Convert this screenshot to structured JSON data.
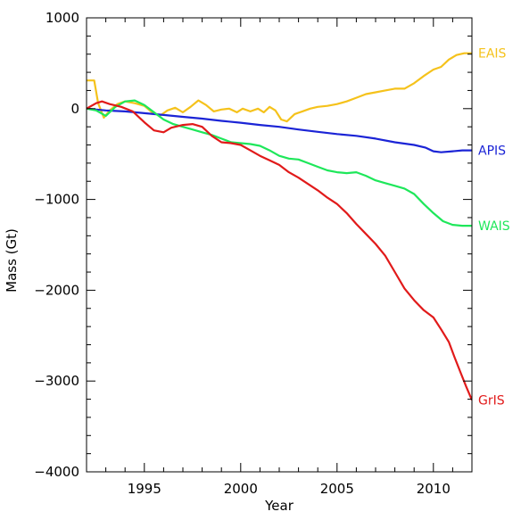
{
  "chart_data": {
    "type": "line",
    "title": "",
    "xlabel": "Year",
    "ylabel": "Mass (Gt)",
    "xlim": [
      1992,
      2012
    ],
    "ylim": [
      -4000,
      1000
    ],
    "xticks": [
      1995,
      2000,
      2005,
      2010
    ],
    "xtick_labels": [
      "1995",
      "2000",
      "2005",
      "2010"
    ],
    "yticks": [
      1000,
      0,
      -1000,
      -2000,
      -3000,
      -4000
    ],
    "ytick_labels": [
      "1000",
      "0",
      "−1000",
      "−2000",
      "−3000",
      "−4000"
    ],
    "grid": false,
    "legend": "direct labels at right end of lines",
    "series": [
      {
        "name": "EAIS",
        "color": "#f5c21b",
        "x": [
          1992.0,
          1992.4,
          1992.6,
          1992.9,
          1993.2,
          1993.6,
          1994.0,
          1994.5,
          1995.0,
          1995.4,
          1995.8,
          1996.2,
          1996.6,
          1997.0,
          1997.4,
          1997.8,
          1998.2,
          1998.6,
          1999.0,
          1999.4,
          1999.8,
          2000.1,
          2000.5,
          2000.9,
          2001.2,
          2001.5,
          2001.8,
          2002.1,
          2002.4,
          2002.8,
          2003.2,
          2003.6,
          2004.0,
          2004.5,
          2005.0,
          2005.5,
          2006.0,
          2006.5,
          2007.0,
          2007.5,
          2008.0,
          2008.5,
          2009.0,
          2009.5,
          2010.0,
          2010.4,
          2010.8,
          2011.2,
          2011.6,
          2012.0
        ],
        "values": [
          310,
          310,
          60,
          -100,
          -20,
          50,
          80,
          60,
          30,
          -40,
          -80,
          -20,
          10,
          -40,
          20,
          90,
          40,
          -30,
          -10,
          0,
          -40,
          0,
          -30,
          0,
          -40,
          20,
          -20,
          -120,
          -140,
          -60,
          -30,
          0,
          20,
          30,
          50,
          80,
          120,
          160,
          180,
          200,
          220,
          220,
          280,
          360,
          430,
          460,
          540,
          590,
          610,
          610
        ]
      },
      {
        "name": "APIS",
        "color": "#1b24d6",
        "x": [
          1992.0,
          1993.0,
          1994.0,
          1995.0,
          1996.0,
          1997.0,
          1998.0,
          1999.0,
          2000.0,
          2001.0,
          2002.0,
          2003.0,
          2004.0,
          2005.0,
          2006.0,
          2007.0,
          2008.0,
          2009.0,
          2009.6,
          2010.0,
          2010.4,
          2011.0,
          2011.5,
          2012.0
        ],
        "values": [
          0,
          -20,
          -30,
          -50,
          -70,
          -90,
          -110,
          -135,
          -155,
          -180,
          -200,
          -230,
          -255,
          -280,
          -300,
          -330,
          -370,
          -400,
          -430,
          -470,
          -480,
          -470,
          -460,
          -460
        ]
      },
      {
        "name": "WAIS",
        "color": "#1ee75a",
        "x": [
          1992.0,
          1992.5,
          1993.0,
          1993.5,
          1994.0,
          1994.5,
          1995.0,
          1995.5,
          1996.0,
          1996.5,
          1997.0,
          1997.5,
          1998.0,
          1998.5,
          1999.0,
          1999.5,
          2000.0,
          2000.5,
          2001.0,
          2001.5,
          2002.0,
          2002.5,
          2003.0,
          2003.5,
          2004.0,
          2004.5,
          2005.0,
          2005.5,
          2006.0,
          2006.5,
          2007.0,
          2007.5,
          2008.0,
          2008.5,
          2009.0,
          2009.5,
          2010.0,
          2010.5,
          2011.0,
          2011.5,
          2012.0
        ],
        "values": [
          0,
          -20,
          -80,
          20,
          80,
          90,
          40,
          -40,
          -120,
          -170,
          -200,
          -230,
          -260,
          -290,
          -330,
          -370,
          -380,
          -390,
          -410,
          -460,
          -520,
          -550,
          -560,
          -600,
          -640,
          -680,
          -700,
          -710,
          -700,
          -740,
          -790,
          -820,
          -850,
          -880,
          -940,
          -1050,
          -1150,
          -1240,
          -1280,
          -1290,
          -1290
        ]
      },
      {
        "name": "GrIS",
        "color": "#e11a1a",
        "x": [
          1992.0,
          1992.5,
          1992.8,
          1993.2,
          1993.8,
          1994.4,
          1995.0,
          1995.5,
          1996.0,
          1996.4,
          1997.0,
          1997.5,
          1998.0,
          1998.5,
          1999.0,
          1999.5,
          2000.0,
          2000.5,
          2001.0,
          2001.5,
          2002.0,
          2002.5,
          2003.0,
          2003.5,
          2004.0,
          2004.5,
          2005.0,
          2005.5,
          2006.0,
          2006.5,
          2007.0,
          2007.5,
          2008.0,
          2008.5,
          2009.0,
          2009.5,
          2010.0,
          2010.4,
          2010.8,
          2011.1,
          2011.4,
          2011.7,
          2012.0
        ],
        "values": [
          0,
          60,
          80,
          50,
          20,
          -30,
          -150,
          -240,
          -260,
          -210,
          -180,
          -170,
          -200,
          -300,
          -370,
          -380,
          -400,
          -460,
          -520,
          -570,
          -620,
          -700,
          -760,
          -830,
          -900,
          -980,
          -1050,
          -1150,
          -1270,
          -1380,
          -1490,
          -1620,
          -1800,
          -1980,
          -2110,
          -2220,
          -2300,
          -2430,
          -2570,
          -2740,
          -2900,
          -3060,
          -3210
        ]
      }
    ]
  }
}
